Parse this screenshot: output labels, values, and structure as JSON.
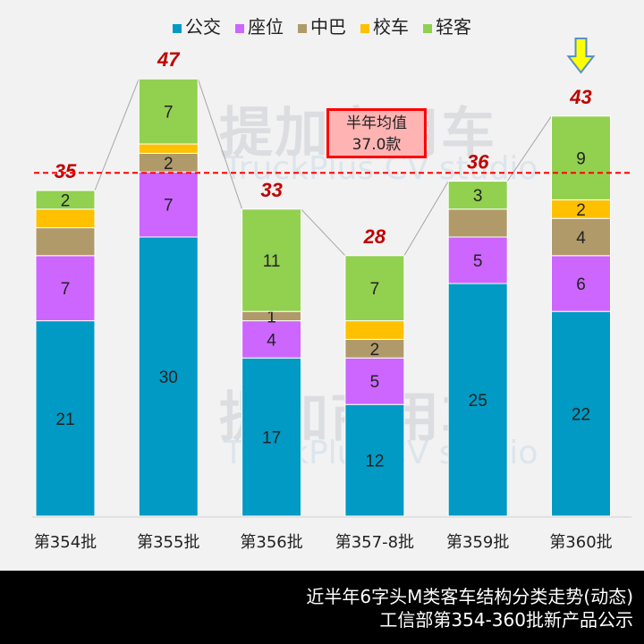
{
  "chart_data": {
    "type": "bar",
    "stacked": true,
    "categories": [
      "第354批",
      "第355批",
      "第356批",
      "第357-8批",
      "第359批",
      "第360批"
    ],
    "series": [
      {
        "name": "公交",
        "color": "#009ac4",
        "values": [
          21,
          30,
          17,
          12,
          25,
          22
        ],
        "labeled": [
          true,
          true,
          true,
          true,
          true,
          true
        ]
      },
      {
        "name": "座位",
        "color": "#cc66ff",
        "values": [
          7,
          7,
          4,
          5,
          5,
          6
        ],
        "labeled": [
          true,
          true,
          true,
          true,
          true,
          true
        ]
      },
      {
        "name": "中巴",
        "color": "#b09a6a",
        "values": [
          3,
          2,
          1,
          2,
          3,
          4
        ],
        "labeled": [
          false,
          true,
          true,
          true,
          false,
          true
        ]
      },
      {
        "name": "校车",
        "color": "#ffc000",
        "values": [
          2,
          1,
          0,
          2,
          0,
          2
        ],
        "labeled": [
          false,
          false,
          false,
          false,
          false,
          true
        ]
      },
      {
        "name": "轻客",
        "color": "#92d050",
        "values": [
          2,
          7,
          11,
          7,
          3,
          9
        ],
        "labeled": [
          true,
          true,
          true,
          true,
          true,
          true
        ]
      }
    ],
    "totals": [
      35,
      47,
      33,
      28,
      36,
      43
    ],
    "average": 37.0,
    "ylim": [
      0,
      50
    ],
    "legend_position": "top",
    "grid": false,
    "highlight_arrow_category": "第360批",
    "colors": {
      "total_label": "#c00000",
      "average_line": "#ff0000",
      "arrow": "#ffff00"
    }
  },
  "avg_box": {
    "line1": "半年均值",
    "line2": "37.0款"
  },
  "watermark": {
    "text": "提加商用车",
    "sub": "TruckPlus CV studio"
  },
  "footer": {
    "line1": "近半年6字头M类客车结构分类走势(动态)",
    "line2": "工信部第354-360批新产品公示"
  }
}
